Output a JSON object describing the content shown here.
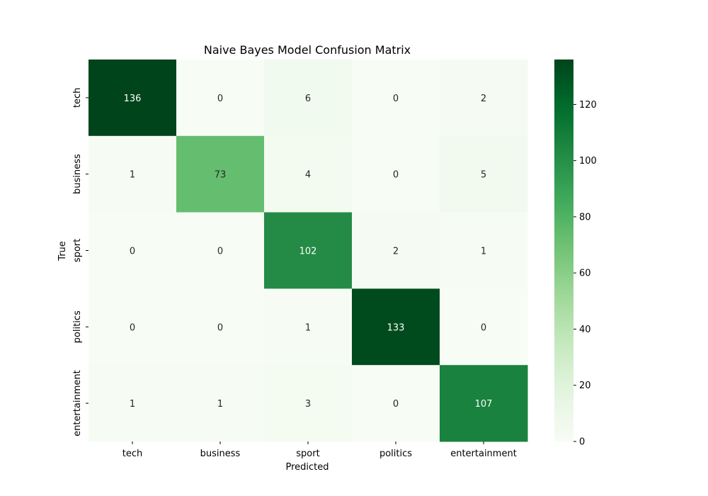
{
  "chart_data": {
    "type": "heatmap",
    "title": "Naive Bayes Model Confusion Matrix",
    "xlabel": "Predicted",
    "ylabel": "True",
    "x_categories": [
      "tech",
      "business",
      "sport",
      "politics",
      "entertainment"
    ],
    "y_categories": [
      "tech",
      "business",
      "sport",
      "politics",
      "entertainment"
    ],
    "matrix": [
      [
        136,
        0,
        6,
        0,
        2
      ],
      [
        1,
        73,
        4,
        0,
        5
      ],
      [
        0,
        0,
        102,
        2,
        1
      ],
      [
        0,
        0,
        1,
        133,
        0
      ],
      [
        1,
        1,
        3,
        0,
        107
      ]
    ],
    "colorbar": {
      "min": 0,
      "max": 136,
      "ticks": [
        0,
        20,
        40,
        60,
        80,
        100,
        120
      ],
      "colormap": "Greens"
    },
    "grid": false
  }
}
